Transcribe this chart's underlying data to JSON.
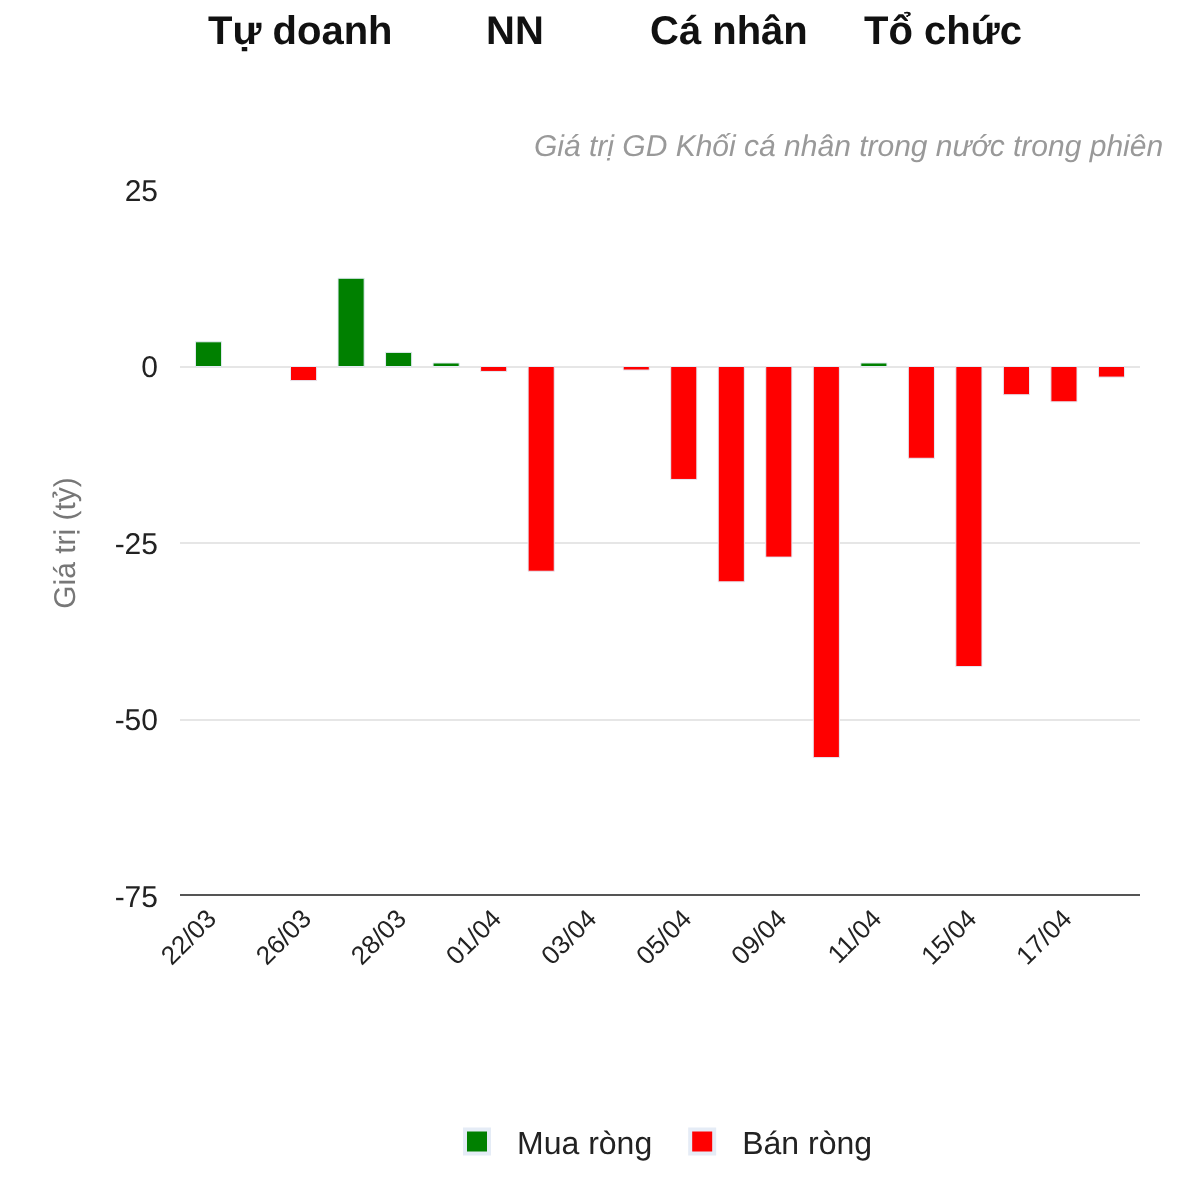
{
  "chart_data": {
    "type": "bar",
    "subtitle": "Giá trị GD Khối cá nhân trong nước trong phiên",
    "ylabel": "Giá trị (tỷ)",
    "annotations": [
      "Tự doanh",
      "NN",
      "Cá nhân",
      "Tổ chức"
    ],
    "categories": [
      "22/03",
      null,
      "26/03",
      null,
      "28/03",
      null,
      "01/04",
      null,
      "03/04",
      null,
      "05/04",
      null,
      "09/04",
      null,
      "11/04",
      null,
      "15/04",
      null,
      "17/04",
      null
    ],
    "series": [
      {
        "name": "Mua ròng",
        "color": "#008000",
        "values": [
          3.5,
          null,
          null,
          12.5,
          2,
          0.5,
          null,
          null,
          null,
          null,
          null,
          null,
          null,
          null,
          0.5,
          null,
          null,
          null,
          null,
          null
        ]
      },
      {
        "name": "Bán ròng",
        "color": "#ff0000",
        "values": [
          null,
          null,
          -2,
          null,
          null,
          null,
          -0.7,
          -29,
          null,
          -0.5,
          -16,
          -30.5,
          -27,
          -55.4,
          null,
          -13,
          -42.5,
          -4,
          -5,
          -1.5
        ]
      }
    ],
    "ylim": [
      -75,
      25
    ],
    "yticks": [
      -75,
      -50,
      -25,
      0,
      25
    ],
    "grid": "y",
    "legend": "bottom"
  }
}
